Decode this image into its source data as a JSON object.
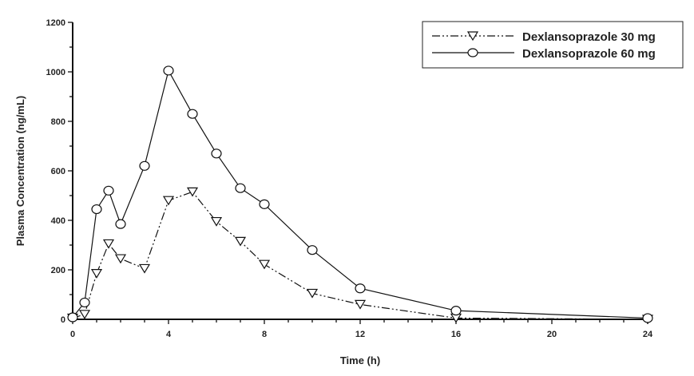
{
  "chart_data": {
    "type": "line",
    "title": "",
    "xlabel": "Time (h)",
    "ylabel": "Plasma Concentration (ng/mL)",
    "xlim": [
      0,
      24
    ],
    "ylim": [
      0,
      1200
    ],
    "xticks": [
      0,
      4,
      8,
      12,
      16,
      20,
      24
    ],
    "yticks": [
      0,
      200,
      400,
      600,
      800,
      1000,
      1200
    ],
    "grid": false,
    "legend_position": "top-right",
    "series": [
      {
        "name": "Dexlansoprazole 30 mg",
        "marker": "triangle-down",
        "line": "dash-dot-dot",
        "x": [
          0,
          0.5,
          1,
          1.5,
          2,
          3,
          4,
          5,
          6,
          7,
          8,
          10,
          12,
          16,
          24
        ],
        "y": [
          5,
          20,
          185,
          305,
          245,
          205,
          480,
          515,
          395,
          315,
          222,
          105,
          60,
          5,
          0
        ]
      },
      {
        "name": "Dexlansoprazole 60 mg",
        "marker": "circle",
        "line": "solid",
        "x": [
          0,
          0.5,
          1,
          1.5,
          2,
          3,
          4,
          5,
          6,
          7,
          8,
          10,
          12,
          16,
          24
        ],
        "y": [
          8,
          68,
          445,
          520,
          385,
          620,
          1005,
          830,
          670,
          530,
          465,
          280,
          125,
          35,
          5
        ]
      }
    ]
  }
}
